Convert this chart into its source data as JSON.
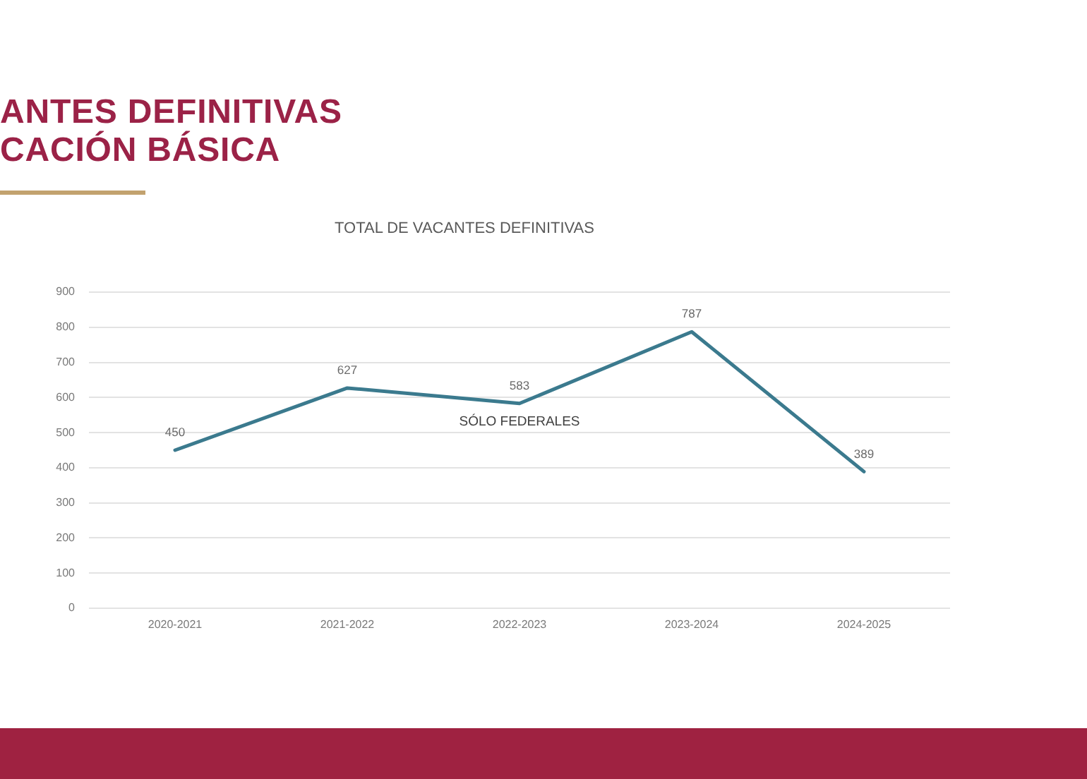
{
  "chart_data": {
    "type": "line",
    "title": "ANTES DEFINITIVAS\nCACIÓN BÁSICA",
    "subtitle": "TOTAL DE VACANTES DEFINITIVAS",
    "categories": [
      "2020-2021",
      "2021-2022",
      "2022-2023",
      "2023-2024",
      "2024-2025"
    ],
    "values": [
      450,
      627,
      583,
      787,
      389
    ],
    "color": "#3b7a8e",
    "ylim": [
      0,
      900
    ],
    "yticks": [
      0,
      100,
      200,
      300,
      400,
      500,
      600,
      700,
      800,
      900
    ],
    "grid": "y",
    "marker": "none",
    "line_style": "solid",
    "data_labels": true,
    "annotations": [
      "SÓLO FEDERALES"
    ]
  }
}
